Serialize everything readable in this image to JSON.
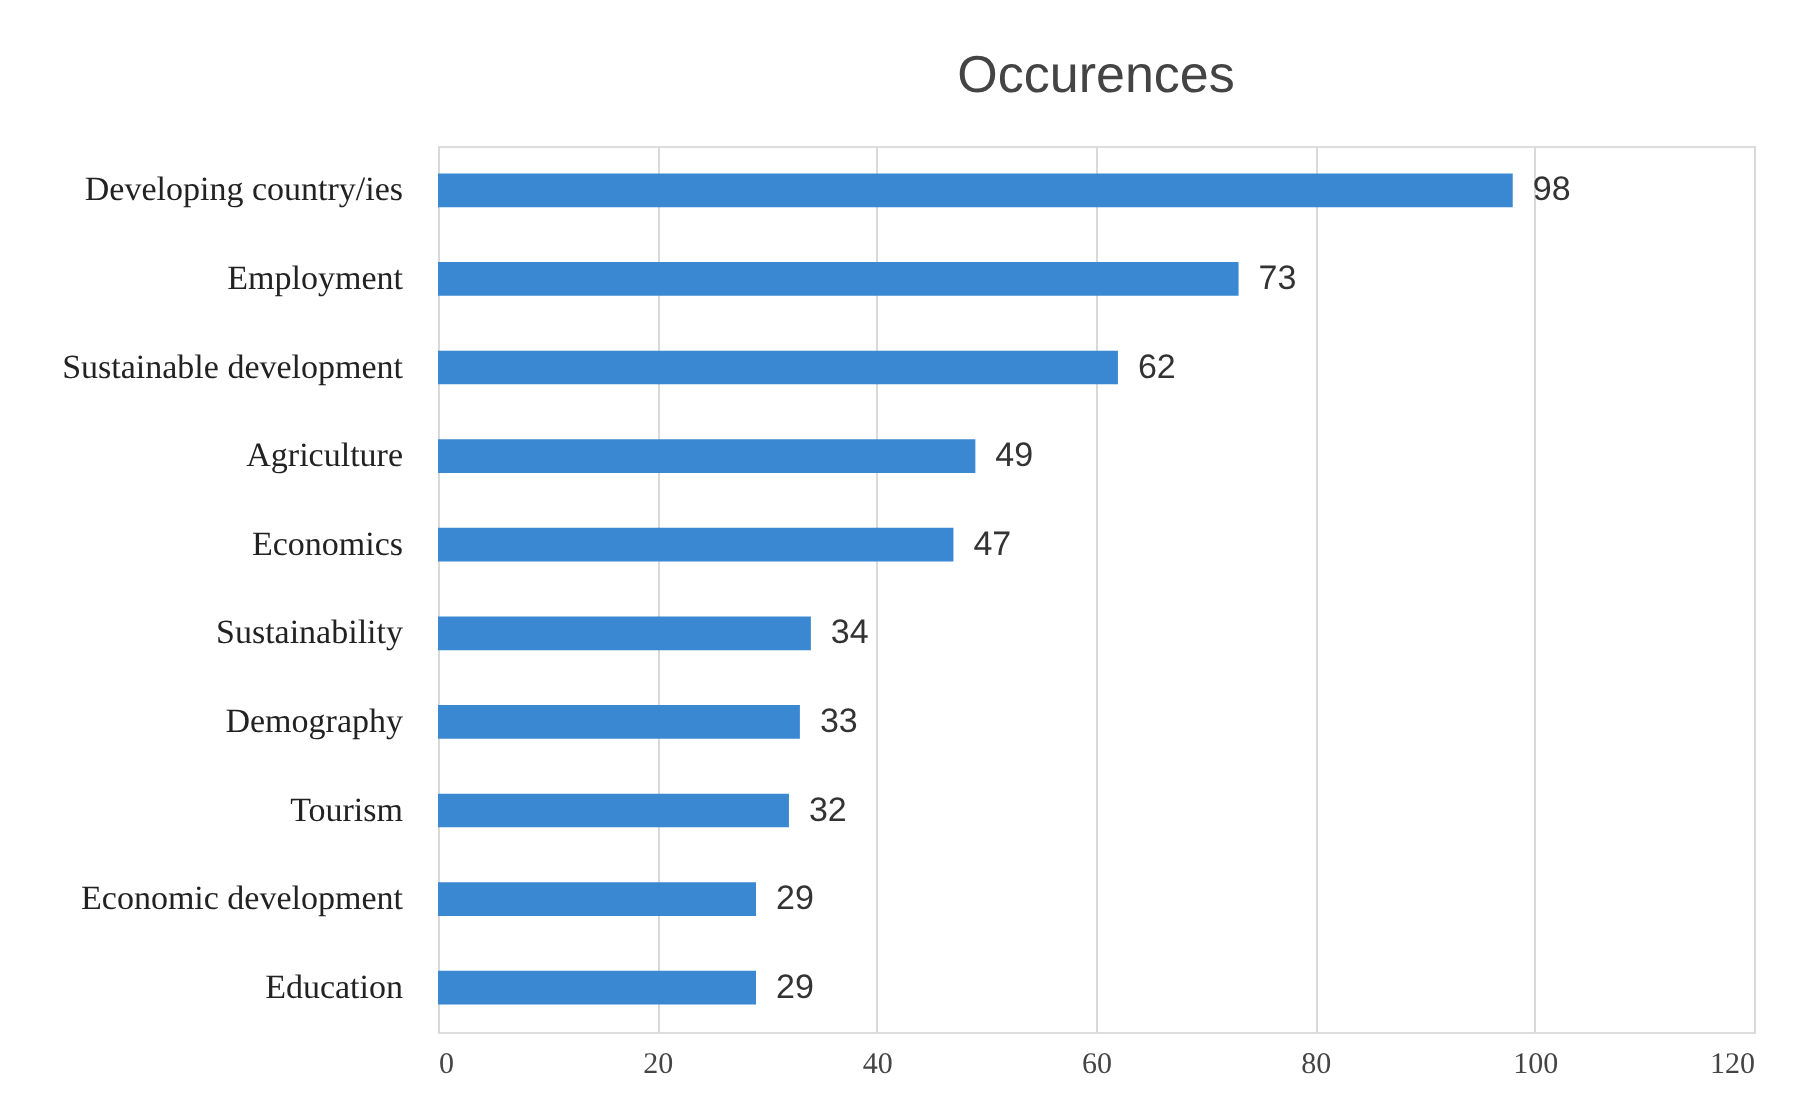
{
  "chart_data": {
    "type": "bar",
    "orientation": "horizontal",
    "title": "Occurences",
    "categories": [
      "Developing country/ies",
      "Employment",
      "Sustainable development",
      "Agriculture",
      "Economics",
      "Sustainability",
      "Demography",
      "Tourism",
      "Economic development",
      "Education"
    ],
    "values": [
      98,
      73,
      62,
      49,
      47,
      34,
      33,
      32,
      29,
      29
    ],
    "color": "#3b88d2",
    "xlim": [
      0,
      120
    ],
    "xticks": [
      0,
      20,
      40,
      60,
      80,
      100,
      120
    ],
    "grid": "x",
    "data_labels": true
  }
}
